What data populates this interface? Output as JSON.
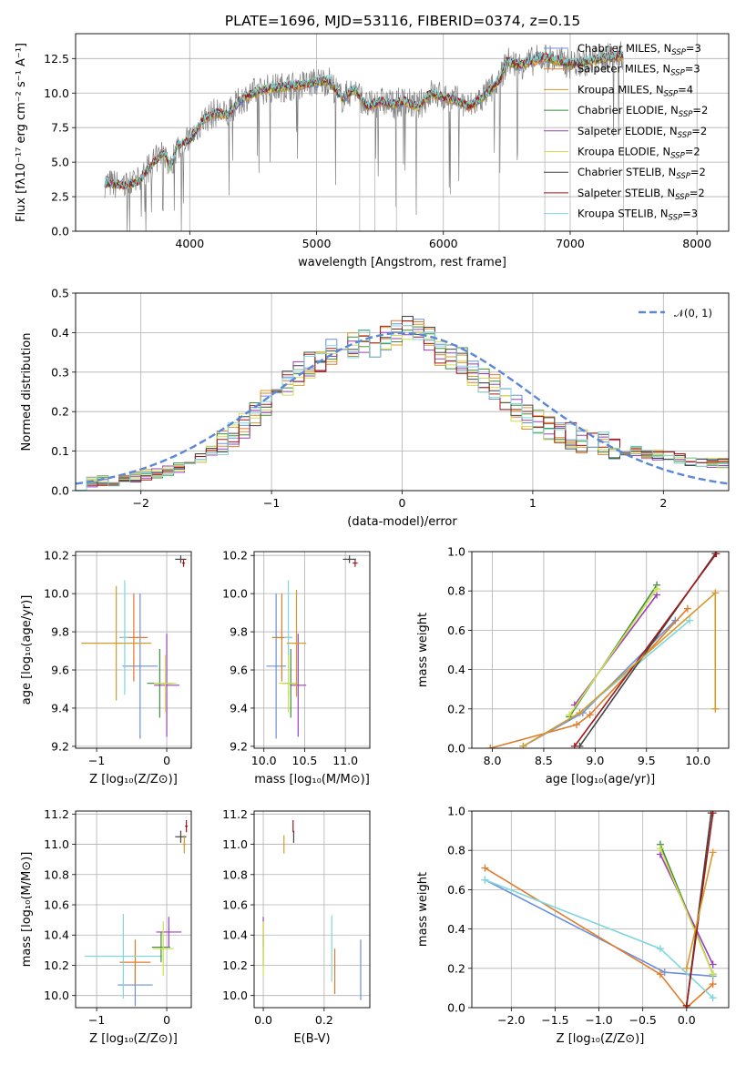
{
  "figure_title": "PLATE=1696, MJD=53116, FIBERID=0374, z=0.15",
  "series": [
    {
      "name": "Chabrier MILES",
      "nssp": "3",
      "color": "#6a8fdc"
    },
    {
      "name": "Salpeter MILES",
      "nssp": "3",
      "color": "#e07b2a"
    },
    {
      "name": "Kroupa MILES",
      "nssp": "4",
      "color": "#d69a2b"
    },
    {
      "name": "Chabrier ELODIE",
      "nssp": "2",
      "color": "#3e8a3e"
    },
    {
      "name": "Salpeter ELODIE",
      "nssp": "2",
      "color": "#9a3fb8"
    },
    {
      "name": "Kroupa ELODIE",
      "nssp": "2",
      "color": "#cfe04a"
    },
    {
      "name": "Chabrier STELIB",
      "nssp": "2",
      "color": "#444444"
    },
    {
      "name": "Salpeter STELIB",
      "nssp": "2",
      "color": "#a01818"
    },
    {
      "name": "Kroupa STELIB",
      "nssp": "3",
      "color": "#7fd6dc"
    }
  ],
  "chart_data": [
    {
      "id": "spectrum",
      "type": "line",
      "xlabel": "wavelength [Angstrom, rest frame]",
      "ylabel": "Flux [fλ10⁻¹⁷ erg cm⁻² s⁻¹ A⁻¹]",
      "xlim": [
        3100,
        8250
      ],
      "ylim": [
        0,
        14.3
      ],
      "xticks": [
        4000,
        5000,
        6000,
        7000,
        8000
      ],
      "yticks": [
        0.0,
        2.5,
        5.0,
        7.5,
        10.0,
        12.5
      ],
      "data_color": "#808080",
      "model_knots": [
        [
          3330,
          3.5
        ],
        [
          3500,
          3.3
        ],
        [
          3600,
          3.6
        ],
        [
          3700,
          4.8
        ],
        [
          3800,
          5.8
        ],
        [
          3850,
          4.5
        ],
        [
          3900,
          6.2
        ],
        [
          4000,
          6.6
        ],
        [
          4100,
          8.0
        ],
        [
          4200,
          8.6
        ],
        [
          4300,
          8.4
        ],
        [
          4400,
          9.5
        ],
        [
          4500,
          10.0
        ],
        [
          4600,
          10.3
        ],
        [
          4700,
          10.4
        ],
        [
          4800,
          10.5
        ],
        [
          4900,
          10.6
        ],
        [
          5000,
          10.8
        ],
        [
          5100,
          10.9
        ],
        [
          5200,
          9.6
        ],
        [
          5300,
          10.3
        ],
        [
          5400,
          9.0
        ],
        [
          5500,
          9.4
        ],
        [
          5600,
          9.2
        ],
        [
          5700,
          9.4
        ],
        [
          5800,
          9.0
        ],
        [
          5900,
          10.0
        ],
        [
          6000,
          9.7
        ],
        [
          6100,
          9.5
        ],
        [
          6200,
          9.0
        ],
        [
          6300,
          9.6
        ],
        [
          6400,
          10.5
        ],
        [
          6450,
          11.0
        ],
        [
          6500,
          12.3
        ],
        [
          6600,
          12.0
        ],
        [
          6700,
          12.3
        ],
        [
          6800,
          12.6
        ],
        [
          7000,
          12.1
        ],
        [
          7200,
          12.4
        ],
        [
          7400,
          12.7
        ]
      ],
      "data_end": 7420
    },
    {
      "id": "residuals",
      "type": "line",
      "xlabel": "(data-model)/error",
      "ylabel": "Normed distribution",
      "xlim": [
        -2.5,
        2.5
      ],
      "ylim": [
        0,
        0.5
      ],
      "xticks": [
        -2,
        -1,
        0,
        1,
        2
      ],
      "yticks": [
        0.0,
        0.1,
        0.2,
        0.3,
        0.4,
        0.5
      ],
      "normal_label": "𝒩(0, 1)",
      "normal_color": "#5b87d8",
      "hist_base": [
        0.015,
        0.02,
        0.025,
        0.025,
        0.03,
        0.035,
        0.04,
        0.045,
        0.05,
        0.06,
        0.065,
        0.08,
        0.1,
        0.12,
        0.14,
        0.165,
        0.19,
        0.22,
        0.24,
        0.27,
        0.3,
        0.32,
        0.33,
        0.35,
        0.36,
        0.37,
        0.38,
        0.37,
        0.39,
        0.4,
        0.41,
        0.4,
        0.38,
        0.35,
        0.34,
        0.33,
        0.3,
        0.28,
        0.26,
        0.23,
        0.21,
        0.19,
        0.17,
        0.16,
        0.15,
        0.14,
        0.13,
        0.12,
        0.12,
        0.11,
        0.1,
        0.1,
        0.095,
        0.09,
        0.085,
        0.08,
        0.075,
        0.075,
        0.07,
        0.07
      ]
    },
    {
      "id": "age-vs-Z",
      "type": "scatter",
      "xlabel": "Z [log₁₀(Z/Z⊙)]",
      "ylabel": "age  [log₁₀(age/yr)]",
      "xlim": [
        -1.3,
        0.35
      ],
      "ylim": [
        9.19,
        10.22
      ],
      "xticks": [
        -1,
        0
      ],
      "yticks": [
        9.2,
        9.4,
        9.6,
        9.8,
        10.0,
        10.2
      ],
      "points": [
        {
          "s": 0,
          "x": -0.38,
          "xe": 0.25,
          "y": 9.62,
          "ye": 0.38
        },
        {
          "s": 1,
          "x": -0.47,
          "xe": 0.2,
          "y": 9.77,
          "ye": 0.23
        },
        {
          "s": 8,
          "x": -0.6,
          "xe": 0.05,
          "y": 9.77,
          "ye": 0.3
        },
        {
          "s": 3,
          "x": -0.1,
          "xe": 0.18,
          "y": 9.53,
          "ye": 0.18
        },
        {
          "s": 4,
          "x": 0.0,
          "xe": 0.18,
          "y": 9.52,
          "ye": 0.27
        },
        {
          "s": 5,
          "x": -0.02,
          "xe": 0.16,
          "y": 9.53,
          "ye": 0.15
        },
        {
          "s": 6,
          "x": 0.2,
          "xe": 0.08,
          "y": 10.18,
          "ye": 0.02
        },
        {
          "s": 7,
          "x": 0.24,
          "xe": 0.02,
          "y": 10.16,
          "ye": 0.02
        },
        {
          "s": 2,
          "x": -0.72,
          "xe": 0.5,
          "y": 9.74,
          "ye": 0.3
        }
      ]
    },
    {
      "id": "age-vs-mass",
      "type": "scatter",
      "xlabel": "mass [log₁₀(M/M⊙)]",
      "ylabel": "",
      "xlim": [
        9.88,
        11.3
      ],
      "ylim": [
        9.19,
        10.22
      ],
      "xticks": [
        10.0,
        10.5,
        11.0
      ],
      "yticks": [
        9.2,
        9.4,
        9.6,
        9.8,
        10.0,
        10.2
      ],
      "points": [
        {
          "s": 0,
          "x": 10.15,
          "xe": 0.12,
          "y": 9.62,
          "ye": 0.38
        },
        {
          "s": 1,
          "x": 10.22,
          "xe": 0.12,
          "y": 9.77,
          "ye": 0.23
        },
        {
          "s": 8,
          "x": 10.3,
          "xe": 0.05,
          "y": 9.77,
          "ye": 0.3
        },
        {
          "s": 3,
          "x": 10.33,
          "xe": 0.1,
          "y": 9.53,
          "ye": 0.18
        },
        {
          "s": 4,
          "x": 10.42,
          "xe": 0.1,
          "y": 9.52,
          "ye": 0.27
        },
        {
          "s": 5,
          "x": 10.3,
          "xe": 0.12,
          "y": 9.53,
          "ye": 0.15
        },
        {
          "s": 6,
          "x": 11.05,
          "xe": 0.08,
          "y": 10.18,
          "ye": 0.02
        },
        {
          "s": 7,
          "x": 11.12,
          "xe": 0.03,
          "y": 10.16,
          "ye": 0.02
        },
        {
          "s": 2,
          "x": 10.4,
          "xe": 0.12,
          "y": 9.74,
          "ye": 0.28
        }
      ]
    },
    {
      "id": "massweight-vs-age",
      "type": "line",
      "xlabel": "age  [log₁₀(age/yr)]",
      "ylabel": "mass weight",
      "xlim": [
        7.8,
        10.3
      ],
      "ylim": [
        0,
        1.0
      ],
      "xticks": [
        8.0,
        8.5,
        9.0,
        9.5,
        10.0
      ],
      "yticks": [
        0.0,
        0.2,
        0.4,
        0.6,
        0.8,
        1.0
      ],
      "lines": [
        {
          "s": 0,
          "pts": [
            [
              8.3,
              0.01
            ],
            [
              8.88,
              0.18
            ],
            [
              9.78,
              0.65
            ]
          ]
        },
        {
          "s": 1,
          "pts": [
            [
              7.98,
              0.0
            ],
            [
              8.82,
              0.12
            ],
            [
              8.95,
              0.17
            ],
            [
              9.9,
              0.71
            ]
          ]
        },
        {
          "s": 8,
          "pts": [
            [
              8.3,
              0.01
            ],
            [
              8.85,
              0.18
            ],
            [
              9.92,
              0.65
            ]
          ]
        },
        {
          "s": 3,
          "pts": [
            [
              8.75,
              0.16
            ],
            [
              9.6,
              0.83
            ]
          ]
        },
        {
          "s": 4,
          "pts": [
            [
              8.8,
              0.22
            ],
            [
              9.6,
              0.78
            ]
          ]
        },
        {
          "s": 5,
          "pts": [
            [
              8.75,
              0.17
            ],
            [
              9.6,
              0.81
            ]
          ]
        },
        {
          "s": 6,
          "pts": [
            [
              8.85,
              0.01
            ],
            [
              10.17,
              0.99
            ]
          ]
        },
        {
          "s": 7,
          "pts": [
            [
              8.8,
              0.01
            ],
            [
              10.18,
              0.99
            ]
          ]
        },
        {
          "s": 2,
          "pts": [
            [
              8.3,
              0.01
            ],
            [
              8.85,
              0.18
            ],
            [
              10.17,
              0.79
            ],
            [
              10.17,
              0.2
            ]
          ]
        }
      ]
    },
    {
      "id": "mass-vs-Z",
      "type": "scatter",
      "xlabel": "Z [log₁₀(Z/Z⊙)]",
      "ylabel": "mass [log₁₀(M/M⊙)]",
      "xlim": [
        -1.3,
        0.35
      ],
      "ylim": [
        9.92,
        11.22
      ],
      "xticks": [
        -1,
        0
      ],
      "yticks": [
        10.0,
        10.2,
        10.4,
        10.6,
        10.8,
        11.0,
        11.2
      ],
      "points": [
        {
          "s": 0,
          "x": -0.45,
          "xe": 0.25,
          "y": 10.07,
          "ye": 0.14
        },
        {
          "s": 1,
          "x": -0.45,
          "xe": 0.22,
          "y": 10.22,
          "ye": 0.15
        },
        {
          "s": 8,
          "x": -0.62,
          "xe": 0.55,
          "y": 10.26,
          "ye": 0.28
        },
        {
          "s": 3,
          "x": -0.08,
          "xe": 0.13,
          "y": 10.32,
          "ye": 0.1
        },
        {
          "s": 4,
          "x": 0.03,
          "xe": 0.18,
          "y": 10.42,
          "ye": 0.1
        },
        {
          "s": 5,
          "x": -0.05,
          "xe": 0.15,
          "y": 10.31,
          "ye": 0.18
        },
        {
          "s": 6,
          "x": 0.2,
          "xe": 0.08,
          "y": 11.05,
          "ye": 0.04
        },
        {
          "s": 7,
          "x": 0.28,
          "xe": 0.02,
          "y": 11.12,
          "ye": 0.04
        },
        {
          "s": 2,
          "x": 0.25,
          "xe": 0.02,
          "y": 11.0,
          "ye": 0.06
        }
      ]
    },
    {
      "id": "mass-vs-ebv",
      "type": "scatter",
      "xlabel": "E(B-V)",
      "ylabel": "",
      "xlim": [
        -0.03,
        0.35
      ],
      "ylim": [
        9.92,
        11.22
      ],
      "xticks": [
        0.0,
        0.2
      ],
      "yticks": [
        10.0,
        10.2,
        10.4,
        10.6,
        10.8,
        11.0,
        11.2
      ],
      "points": [
        {
          "s": 0,
          "x": 0.32,
          "xe": 0.0,
          "y": 10.17,
          "ye": 0.2
        },
        {
          "s": 1,
          "x": 0.235,
          "xe": 0.0,
          "y": 10.16,
          "ye": 0.15
        },
        {
          "s": 8,
          "x": 0.225,
          "xe": 0.0,
          "y": 10.31,
          "ye": 0.22
        },
        {
          "s": 3,
          "x": 0.0,
          "xe": 0.0,
          "y": 10.3,
          "ye": 0.1
        },
        {
          "s": 4,
          "x": 0.0,
          "xe": 0.0,
          "y": 10.42,
          "ye": 0.1
        },
        {
          "s": 5,
          "x": 0.0,
          "xe": 0.0,
          "y": 10.31,
          "ye": 0.18
        },
        {
          "s": 6,
          "x": 0.1,
          "xe": 0.0,
          "y": 11.05,
          "ye": 0.04
        },
        {
          "s": 7,
          "x": 0.098,
          "xe": 0.0,
          "y": 11.12,
          "ye": 0.04
        },
        {
          "s": 2,
          "x": 0.068,
          "xe": 0.0,
          "y": 11.0,
          "ye": 0.06
        }
      ]
    },
    {
      "id": "massweight-vs-Z",
      "type": "line",
      "xlabel": "Z [log₁₀(Z/Z⊙)]",
      "ylabel": "mass weight",
      "xlim": [
        -2.45,
        0.48
      ],
      "ylim": [
        0,
        1.0
      ],
      "xticks": [
        -2.0,
        -1.5,
        -1.0,
        -0.5,
        0.0
      ],
      "yticks": [
        0.0,
        0.2,
        0.4,
        0.6,
        0.8,
        1.0
      ],
      "lines": [
        {
          "s": 0,
          "pts": [
            [
              -2.3,
              0.65
            ],
            [
              -0.25,
              0.18
            ],
            [
              0.3,
              0.16
            ]
          ]
        },
        {
          "s": 1,
          "pts": [
            [
              -2.3,
              0.71
            ],
            [
              -0.3,
              0.17
            ],
            [
              0.0,
              0.0
            ],
            [
              0.3,
              0.12
            ]
          ]
        },
        {
          "s": 8,
          "pts": [
            [
              -2.3,
              0.65
            ],
            [
              -0.3,
              0.3
            ],
            [
              0.3,
              0.05
            ]
          ]
        },
        {
          "s": 3,
          "pts": [
            [
              -0.3,
              0.83
            ],
            [
              0.3,
              0.17
            ]
          ]
        },
        {
          "s": 4,
          "pts": [
            [
              -0.3,
              0.78
            ],
            [
              0.3,
              0.22
            ]
          ]
        },
        {
          "s": 5,
          "pts": [
            [
              -0.3,
              0.81
            ],
            [
              0.3,
              0.17
            ]
          ]
        },
        {
          "s": 6,
          "pts": [
            [
              0.0,
              0.01
            ],
            [
              0.28,
              0.99
            ]
          ]
        },
        {
          "s": 7,
          "pts": [
            [
              0.0,
              0.01
            ],
            [
              0.3,
              0.99
            ]
          ]
        },
        {
          "s": 2,
          "pts": [
            [
              0.0,
              0.2
            ],
            [
              0.3,
              0.79
            ]
          ]
        }
      ]
    }
  ]
}
